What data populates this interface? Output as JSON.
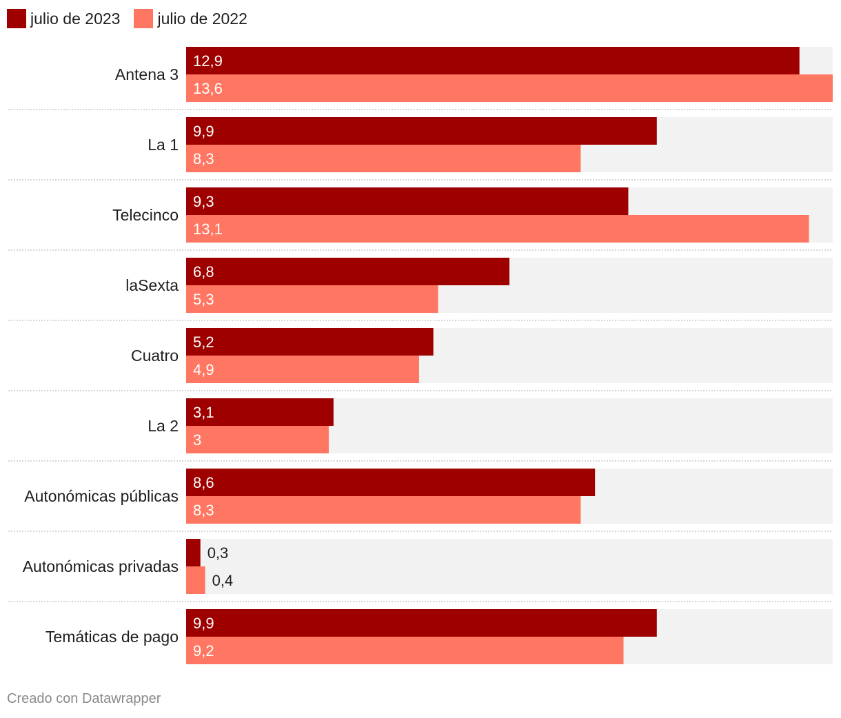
{
  "legend": {
    "items": [
      {
        "label": "julio de 2023",
        "color": "#9e0000"
      },
      {
        "label": "julio de 2022",
        "color": "#ff7762"
      }
    ]
  },
  "chart_data": {
    "type": "bar",
    "orientation": "horizontal",
    "categories": [
      "Antena 3",
      "La 1",
      "Telecinco",
      "laSexta",
      "Cuatro",
      "La 2",
      "Autonómicas públicas",
      "Autonómicas privadas",
      "Temáticas de pago"
    ],
    "series": [
      {
        "name": "julio de 2023",
        "values": [
          12.9,
          9.9,
          9.3,
          6.8,
          5.2,
          3.1,
          8.6,
          0.3,
          9.9
        ],
        "labels": [
          "12,9",
          "9,9",
          "9,3",
          "6,8",
          "5,2",
          "3,1",
          "8,6",
          "0,3",
          "9,9"
        ]
      },
      {
        "name": "julio de 2022",
        "values": [
          13.6,
          8.3,
          13.1,
          5.3,
          4.9,
          3,
          8.3,
          0.4,
          9.2
        ],
        "labels": [
          "13,6",
          "8,3",
          "13,1",
          "5,3",
          "4,9",
          "3",
          "8,3",
          "0,4",
          "9,2"
        ]
      }
    ],
    "xlim": [
      0,
      13.6
    ],
    "title": "",
    "xlabel": "",
    "ylabel": ""
  },
  "colors": {
    "series_2023": "#9e0000",
    "series_2022": "#ff7762",
    "track": "#f2f2f2"
  },
  "footer": {
    "credit": "Creado con Datawrapper"
  }
}
